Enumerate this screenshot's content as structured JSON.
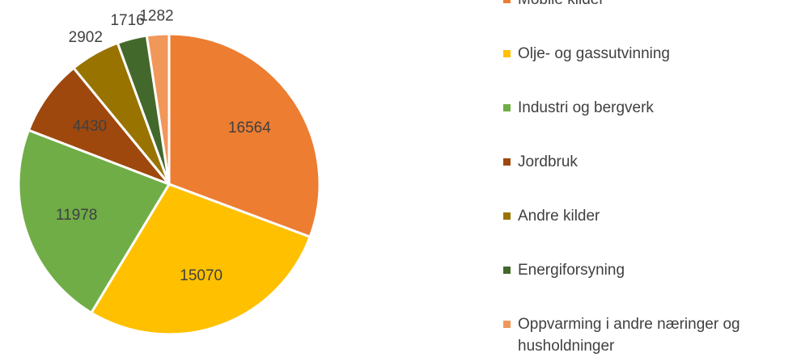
{
  "chart_data": {
    "type": "pie",
    "categories": [
      "Mobile kilder",
      "Olje- og gassutvinning",
      "Industri og bergverk",
      "Jordbruk",
      "Andre kilder",
      "Energiforsyning",
      "Oppvarming i andre næringer og husholdninger"
    ],
    "values": [
      16564,
      15070,
      11978,
      4430,
      2902,
      1716,
      1282
    ],
    "colors": [
      "#ed7d31",
      "#ffc000",
      "#70ad47",
      "#9e480e",
      "#997300",
      "#43682b",
      "#f1975a"
    ]
  }
}
